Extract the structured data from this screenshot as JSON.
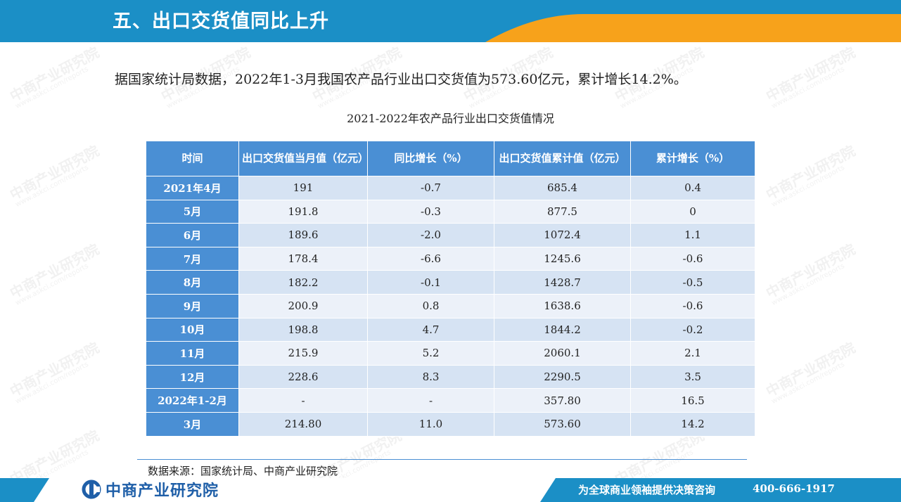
{
  "header": {
    "title": "五、出口交货值同比上升",
    "colors": {
      "blue": "#1b8fc6",
      "orange": "#f7a21b"
    }
  },
  "intro": "据国家统计局数据，2022年1-3月我国农产品行业出口交货值为573.60亿元，累计增长14.2%。",
  "table": {
    "caption": "2021-2022年农产品行业出口交货值情况",
    "columns": [
      "时间",
      "出口交货值当月值（亿元）",
      "同比增长（%）",
      "出口交货值累计值（亿元）",
      "累计增长（%）"
    ],
    "rows": [
      [
        "2021年4月",
        "191",
        "-0.7",
        "685.4",
        "0.4"
      ],
      [
        "5月",
        "191.8",
        "-0.3",
        "877.5",
        "0"
      ],
      [
        "6月",
        "189.6",
        "-2.0",
        "1072.4",
        "1.1"
      ],
      [
        "7月",
        "178.4",
        "-6.6",
        "1245.6",
        "-0.6"
      ],
      [
        "8月",
        "182.2",
        "-0.1",
        "1428.7",
        "-0.5"
      ],
      [
        "9月",
        "200.9",
        "0.8",
        "1638.6",
        "-0.6"
      ],
      [
        "10月",
        "198.8",
        "4.7",
        "1844.2",
        "-0.2"
      ],
      [
        "11月",
        "215.9",
        "5.2",
        "2060.1",
        "2.1"
      ],
      [
        "12月",
        "228.6",
        "8.3",
        "2290.5",
        "3.5"
      ],
      [
        "2022年1-2月",
        "-",
        "-",
        "357.80",
        "16.5"
      ],
      [
        "3月",
        "214.80",
        "11.0",
        "573.60",
        "14.2"
      ]
    ],
    "colors": {
      "header": "#4a8fd4",
      "row_odd": "#d6e3f3",
      "row_even": "#ecf1f9"
    }
  },
  "source": "数据来源：国家统计局、中商产业研究院",
  "footer": {
    "brand": "中商产业研究院",
    "slogan": "为全球商业领袖提供决策咨询",
    "phone": "400-666-1917",
    "icon": "brand-logo-icon"
  },
  "watermark": {
    "name": "中商产业研究院",
    "url": "www.askci.com/reports"
  }
}
